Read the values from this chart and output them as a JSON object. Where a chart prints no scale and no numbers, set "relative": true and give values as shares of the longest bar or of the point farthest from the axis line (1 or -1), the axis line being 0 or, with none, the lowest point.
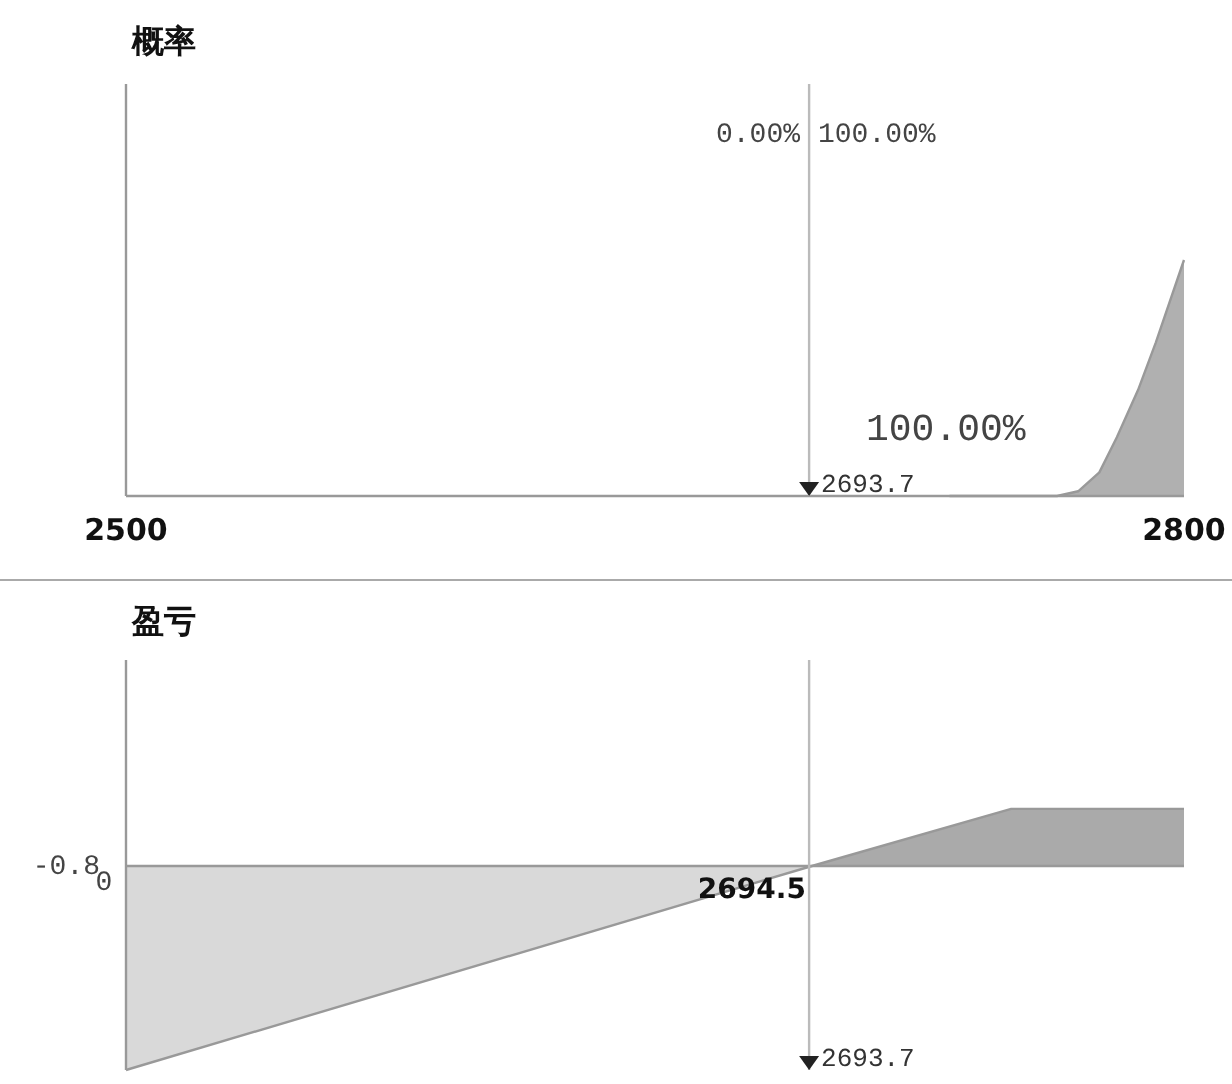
{
  "chart_data": [
    {
      "type": "area",
      "title": "概率",
      "relative": true,
      "xlim": [
        2500,
        2800
      ],
      "xticks": [
        2500,
        2800
      ],
      "tick_labels": "x",
      "series": [
        {
          "color": "#b0b0b0",
          "x": [
            2733.5,
            2764,
            2770,
            2776,
            2781,
            2787,
            2792,
            2800
          ],
          "values": [
            0,
            0,
            0.02,
            0.1,
            0.25,
            0.45,
            0.65,
            1.0
          ]
        }
      ],
      "ref_lines": [
        {
          "axis": "x",
          "value": 2693.7,
          "label": "2693.7"
        }
      ],
      "annotations": [
        "0.00%",
        "100.00%",
        "100.00%"
      ]
    },
    {
      "type": "area",
      "title": "盈亏",
      "relative": true,
      "xlim": [
        2500,
        2800
      ],
      "tick_labels": false,
      "series": [
        {
          "color": "#d9d9d9",
          "x": [
            2500,
            2694.5
          ],
          "values": [
            -1,
            0
          ]
        },
        {
          "color": "#aaaaaa",
          "x": [
            2694.5,
            2751,
            2800
          ],
          "values": [
            0,
            0.28,
            0.28
          ]
        }
      ],
      "ref_lines": [
        {
          "axis": "x",
          "value": 2693.7,
          "label": "2693.7"
        }
      ],
      "annotations": [
        {
          "text": "2694.5",
          "x": 2694.5,
          "y": 0
        },
        "-0.8",
        "0"
      ]
    }
  ]
}
